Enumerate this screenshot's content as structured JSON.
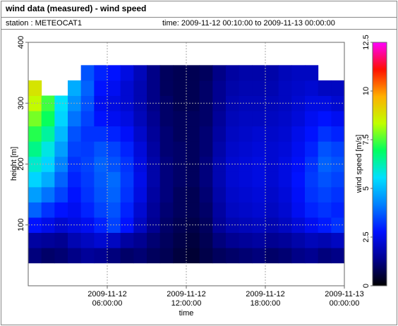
{
  "chart_data": {
    "type": "heatmap",
    "title": "wind data (measured) - wind speed",
    "station": "station : METEOCAT1",
    "time_range": "time: 2009-11-12 00:10:00 to 2009-11-13 00:00:00",
    "xlabel": "time",
    "ylabel": "height [m]",
    "colorbar_label": "wind speed [m/s]",
    "xlim": [
      0,
      24
    ],
    "xticks": [
      {
        "value": 6,
        "label": "2009-11-12 06:00:00"
      },
      {
        "value": 12,
        "label": "2009-11-12 12:00:00"
      },
      {
        "value": 18,
        "label": "2009-11-12 18:00:00"
      },
      {
        "value": 24,
        "label": "2009-11-13 00:00:00"
      }
    ],
    "ylim": [
      0,
      400
    ],
    "yticks": [
      100,
      200,
      300,
      400
    ],
    "grid": true,
    "clim": [
      0,
      12.5
    ],
    "cticks": [
      0,
      2.5,
      5,
      7.5,
      10,
      12.5
    ],
    "colormap": [
      "#000000",
      "#000090",
      "#0010ff",
      "#0080ff",
      "#00e0ff",
      "#00ff60",
      "#c0ff00",
      "#ffb000",
      "#ff1000",
      "#ff00ff"
    ],
    "x": [
      0.5,
      1.5,
      2.5,
      3.5,
      4.5,
      5.5,
      6.5,
      7.5,
      8.5,
      9.5,
      10.5,
      11.5,
      12.5,
      13.5,
      14.5,
      15.5,
      16.5,
      17.5,
      18.5,
      19.5,
      20.5,
      21.5,
      22.5,
      23.5
    ],
    "y": [
      50,
      75,
      100,
      125,
      150,
      175,
      200,
      225,
      250,
      275,
      300,
      325,
      350
    ],
    "z": [
      [
        1.2,
        1.0,
        1.1,
        1.3,
        1.5,
        1.4,
        1.2,
        1.0,
        1.1,
        0.9,
        0.8,
        0.6,
        0.5,
        0.7,
        0.9,
        1.0,
        1.1,
        1.2,
        1.0,
        1.1,
        1.3,
        1.4,
        1.2,
        1.3
      ],
      [
        1.6,
        1.5,
        1.4,
        1.8,
        2.0,
        2.2,
        2.0,
        1.6,
        1.4,
        1.1,
        0.9,
        0.7,
        0.6,
        0.8,
        1.2,
        1.4,
        1.5,
        1.6,
        1.4,
        1.5,
        1.7,
        1.9,
        1.8,
        2.0
      ],
      [
        2.8,
        2.5,
        2.2,
        2.4,
        2.6,
        3.0,
        3.4,
        2.8,
        2.0,
        1.4,
        1.0,
        0.8,
        0.7,
        0.9,
        1.5,
        1.8,
        1.9,
        2.0,
        1.8,
        2.0,
        2.3,
        2.6,
        2.9,
        3.2
      ],
      [
        3.8,
        3.2,
        2.8,
        2.6,
        3.0,
        3.4,
        3.6,
        3.0,
        2.2,
        1.5,
        1.1,
        0.9,
        0.8,
        1.0,
        1.6,
        2.0,
        2.1,
        2.2,
        2.0,
        2.2,
        2.6,
        3.0,
        3.2,
        3.0
      ],
      [
        4.6,
        4.0,
        3.4,
        2.8,
        3.2,
        3.6,
        3.8,
        3.2,
        2.4,
        1.6,
        1.2,
        0.9,
        0.8,
        1.1,
        1.7,
        2.1,
        2.2,
        2.3,
        2.1,
        2.3,
        2.7,
        3.2,
        3.4,
        3.2
      ],
      [
        5.4,
        4.8,
        3.8,
        3.0,
        3.3,
        3.7,
        3.9,
        3.3,
        2.5,
        1.7,
        1.2,
        1.0,
        0.9,
        1.2,
        1.8,
        2.2,
        2.3,
        2.4,
        2.2,
        2.4,
        2.8,
        3.3,
        3.6,
        3.4
      ],
      [
        6.0,
        5.4,
        4.2,
        3.2,
        3.4,
        3.8,
        3.6,
        3.2,
        2.4,
        1.7,
        1.2,
        1.0,
        0.9,
        1.2,
        1.8,
        2.2,
        2.3,
        2.4,
        2.2,
        2.4,
        2.7,
        3.2,
        3.8,
        3.6
      ],
      [
        6.6,
        5.8,
        4.6,
        3.4,
        3.3,
        3.6,
        3.4,
        3.0,
        2.3,
        1.6,
        1.1,
        1.0,
        0.9,
        1.1,
        1.7,
        2.1,
        2.2,
        2.3,
        2.2,
        2.3,
        2.6,
        3.0,
        3.6,
        3.4
      ],
      [
        7.2,
        6.4,
        5.0,
        3.6,
        3.2,
        3.2,
        3.0,
        2.7,
        2.1,
        1.5,
        1.1,
        0.9,
        0.9,
        1.1,
        1.6,
        2.0,
        2.1,
        2.2,
        2.1,
        2.2,
        2.5,
        2.8,
        3.2,
        3.0
      ],
      [
        7.8,
        7.0,
        5.4,
        4.0,
        3.4,
        2.8,
        2.6,
        2.4,
        1.9,
        1.4,
        1.0,
        0.9,
        0.9,
        1.0,
        1.5,
        1.9,
        2.0,
        2.0,
        2.0,
        2.1,
        2.3,
        2.6,
        2.8,
        2.6
      ],
      [
        8.4,
        7.4,
        5.6,
        4.4,
        3.6,
        2.6,
        2.4,
        2.2,
        1.8,
        1.3,
        1.0,
        0.8,
        0.8,
        1.0,
        1.4,
        1.8,
        1.9,
        1.9,
        1.9,
        2.0,
        2.2,
        2.4,
        2.4,
        2.2
      ],
      [
        8.8,
        null,
        null,
        4.8,
        3.8,
        2.8,
        2.6,
        2.2,
        1.8,
        1.3,
        0.9,
        0.8,
        0.8,
        1.0,
        1.4,
        1.7,
        1.8,
        1.8,
        1.8,
        2.0,
        2.1,
        2.2,
        2.0,
        2.0
      ],
      [
        null,
        null,
        null,
        null,
        3.6,
        3.0,
        2.8,
        2.4,
        1.9,
        1.3,
        0.9,
        0.8,
        0.8,
        0.9,
        1.3,
        1.6,
        1.7,
        1.7,
        1.7,
        1.9,
        2.0,
        2.0,
        null,
        null
      ]
    ]
  }
}
